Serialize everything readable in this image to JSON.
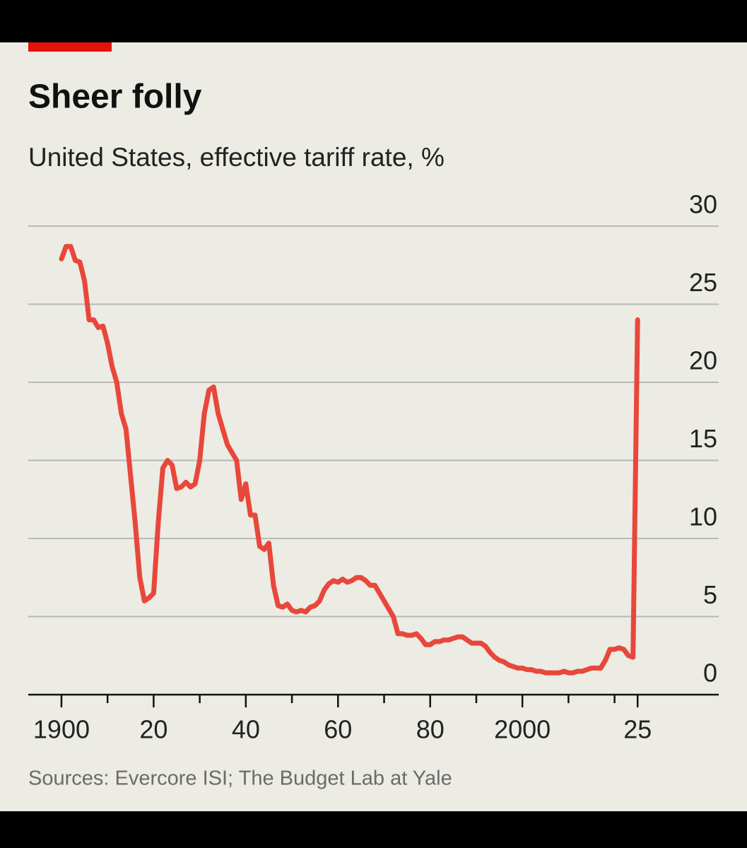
{
  "chart_data": {
    "type": "line",
    "title": "Sheer folly",
    "subtitle": "United States, effective tariff rate, %",
    "source": "Sources: Evercore ISI; The Budget Lab at Yale",
    "x": [
      1900,
      1901,
      1902,
      1903,
      1904,
      1905,
      1906,
      1907,
      1908,
      1909,
      1910,
      1911,
      1912,
      1913,
      1914,
      1915,
      1916,
      1917,
      1918,
      1919,
      1920,
      1921,
      1922,
      1923,
      1924,
      1925,
      1926,
      1927,
      1928,
      1929,
      1930,
      1931,
      1932,
      1933,
      1934,
      1935,
      1936,
      1937,
      1938,
      1939,
      1940,
      1941,
      1942,
      1943,
      1944,
      1945,
      1946,
      1947,
      1948,
      1949,
      1950,
      1951,
      1952,
      1953,
      1954,
      1955,
      1956,
      1957,
      1958,
      1959,
      1960,
      1961,
      1962,
      1963,
      1964,
      1965,
      1966,
      1967,
      1968,
      1969,
      1970,
      1971,
      1972,
      1973,
      1974,
      1975,
      1976,
      1977,
      1978,
      1979,
      1980,
      1981,
      1982,
      1983,
      1984,
      1985,
      1986,
      1987,
      1988,
      1989,
      1990,
      1991,
      1992,
      1993,
      1994,
      1995,
      1996,
      1997,
      1998,
      1999,
      2000,
      2001,
      2002,
      2003,
      2004,
      2005,
      2006,
      2007,
      2008,
      2009,
      2010,
      2011,
      2012,
      2013,
      2014,
      2015,
      2016,
      2017,
      2018,
      2019,
      2020,
      2021,
      2022,
      2023,
      2024,
      2025
    ],
    "series": [
      {
        "name": "Effective tariff rate",
        "color": "#e8473b",
        "values": [
          27.9,
          28.7,
          28.7,
          27.8,
          27.7,
          26.5,
          24,
          24,
          23.5,
          23.6,
          22.5,
          21,
          20,
          18,
          17,
          14,
          11,
          7.5,
          6,
          6.2,
          6.5,
          11,
          14.5,
          15,
          14.7,
          13.2,
          13.3,
          13.6,
          13.3,
          13.5,
          15,
          18,
          19.5,
          19.7,
          18,
          17,
          16,
          15.5,
          15,
          12.5,
          13.5,
          11.5,
          11.5,
          9.5,
          9.3,
          9.7,
          7,
          5.7,
          5.6,
          5.8,
          5.4,
          5.3,
          5.4,
          5.3,
          5.6,
          5.7,
          6,
          6.7,
          7.1,
          7.3,
          7.2,
          7.4,
          7.2,
          7.3,
          7.5,
          7.5,
          7.3,
          7,
          7,
          6.5,
          6,
          5.5,
          5,
          3.9,
          3.9,
          3.8,
          3.8,
          3.9,
          3.6,
          3.2,
          3.2,
          3.4,
          3.4,
          3.5,
          3.5,
          3.6,
          3.7,
          3.7,
          3.5,
          3.3,
          3.3,
          3.3,
          3.1,
          2.7,
          2.4,
          2.2,
          2.1,
          1.9,
          1.8,
          1.7,
          1.7,
          1.6,
          1.6,
          1.5,
          1.5,
          1.4,
          1.4,
          1.4,
          1.4,
          1.5,
          1.4,
          1.4,
          1.5,
          1.5,
          1.6,
          1.7,
          1.7,
          1.7,
          2.2,
          2.9,
          2.9,
          3,
          2.9,
          2.5,
          2.4,
          24
        ]
      }
    ],
    "xlim": [
      1892.8,
      2042.6
    ],
    "xticks": [
      1900,
      {
        "value": 1920,
        "label": "20"
      },
      {
        "value": 1940,
        "label": "40"
      },
      {
        "value": 1960,
        "label": "60"
      },
      {
        "value": 1980,
        "label": "80"
      },
      2000,
      {
        "value": 2025,
        "label": "25"
      }
    ],
    "xminor_ticks": [
      1910,
      1930,
      1950,
      1970,
      1990,
      2010,
      2020
    ],
    "ylim": [
      0,
      30
    ],
    "yticks": [
      0,
      5,
      10,
      15,
      20,
      25,
      30
    ],
    "grid": true
  }
}
